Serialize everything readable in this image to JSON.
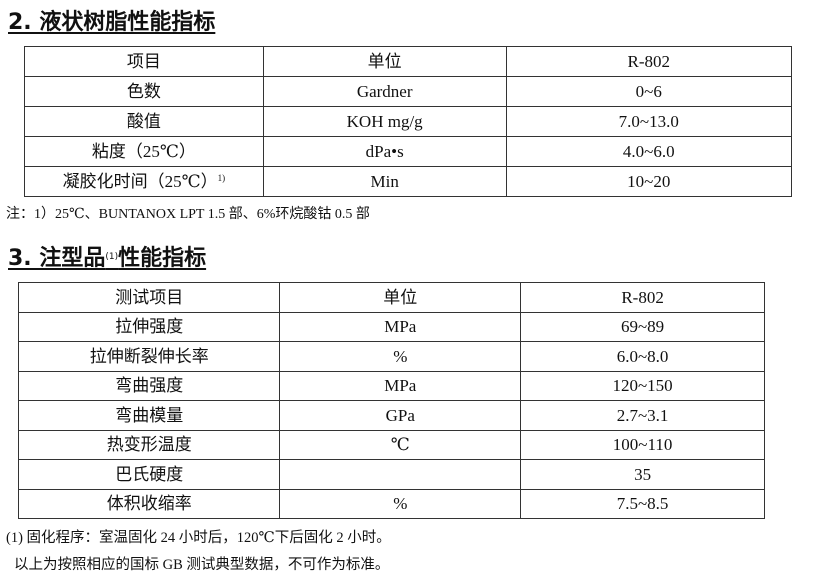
{
  "section2": {
    "title": "2. 液状树脂性能指标",
    "headers": [
      "项目",
      "单位",
      "R-802"
    ],
    "rows": [
      [
        "色数",
        "Gardner",
        "0~6"
      ],
      [
        "酸值",
        "KOH mg/g",
        "7.0~13.0"
      ],
      [
        "粘度（25℃）",
        "dPa•s",
        "4.0~6.0"
      ],
      [
        "凝胶化时间（25℃）",
        "Min",
        "10~20"
      ]
    ],
    "row4_sup": "1)",
    "note": "注：1）25℃、BUNTANOX LPT 1.5 部、6%环烷酸钴 0.5 部"
  },
  "section3": {
    "title": "3. 注型品",
    "title_sup": "(1)",
    "title_rest": "性能指标",
    "headers": [
      "测试项目",
      "单位",
      "R-802"
    ],
    "rows": [
      [
        "拉伸强度",
        "MPa",
        "69~89"
      ],
      [
        "拉伸断裂伸长率",
        "%",
        "6.0~8.0"
      ],
      [
        "弯曲强度",
        "MPa",
        "120~150"
      ],
      [
        "弯曲模量",
        "GPa",
        "2.7~3.1"
      ],
      [
        "热变形温度",
        "℃",
        "100~110"
      ],
      [
        "巴氏硬度",
        "",
        "35"
      ],
      [
        "体积收缩率",
        "%",
        "7.5~8.5"
      ]
    ],
    "note1": "(1) 固化程序：室温固化 24 小时后，120℃下后固化 2 小时。",
    "note2": "以上为按照相应的国标 GB 测试典型数据，不可作为标准。"
  }
}
